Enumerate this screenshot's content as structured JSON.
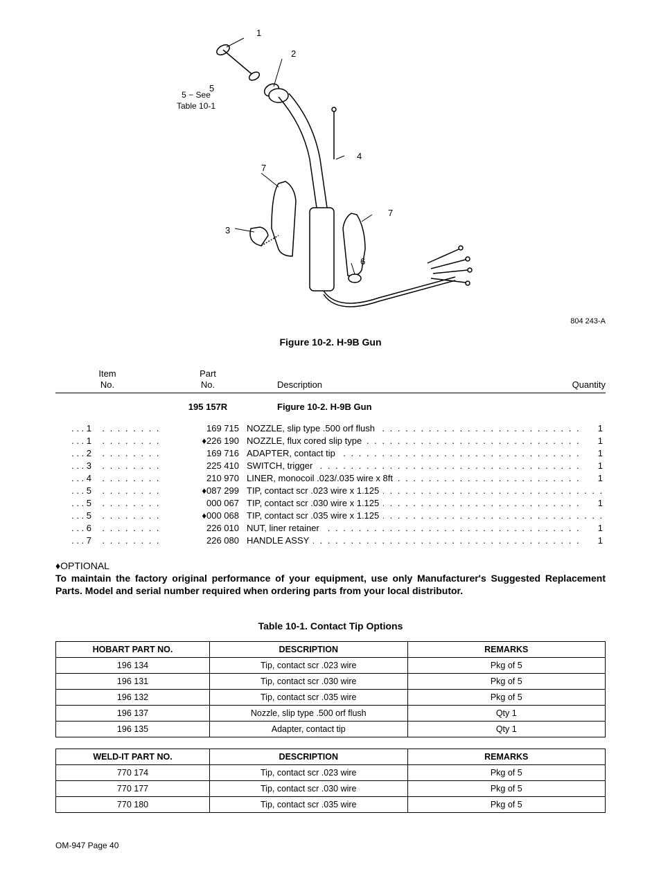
{
  "diagram": {
    "note_line1": "5 − See",
    "note_line2": "Table 10-1",
    "ref": "804 243-A",
    "caption": "Figure 10-2. H-9B Gun",
    "callouts": [
      "1",
      "2",
      "3",
      "4",
      "5",
      "6",
      "7",
      "7"
    ]
  },
  "parts_header": {
    "item_l1": "Item",
    "item_l2": "No.",
    "part_l1": "Part",
    "part_l2": "No.",
    "desc": "Description",
    "qty": "Quantity"
  },
  "title_row": {
    "part": "195 157R",
    "desc": "Figure 10-2. H-9B Gun"
  },
  "parts": [
    {
      "item": "1",
      "opt": false,
      "part": "169 715",
      "desc": "NOZZLE, slip type .500 orf flush",
      "qty": "1"
    },
    {
      "item": "1",
      "opt": true,
      "part": "226 190",
      "desc": "NOZZLE, flux cored slip type",
      "qty": "1"
    },
    {
      "item": "2",
      "opt": false,
      "part": "169 716",
      "desc": "ADAPTER, contact tip",
      "qty": "1"
    },
    {
      "item": "3",
      "opt": false,
      "part": "225 410",
      "desc": "SWITCH, trigger",
      "qty": "1"
    },
    {
      "item": "4",
      "opt": false,
      "part": "210 970",
      "desc": "LINER, monocoil .023/.035 wire x 8ft",
      "qty": "1"
    },
    {
      "item": "5",
      "opt": true,
      "part": "087 299",
      "desc": "TIP, contact scr .023 wire x 1.125",
      "qty": ""
    },
    {
      "item": "5",
      "opt": false,
      "part": "000 067",
      "desc": "TIP, contact scr .030 wire x 1.125",
      "qty": "1"
    },
    {
      "item": "5",
      "opt": true,
      "part": "000 068",
      "desc": "TIP, contact scr .035 wire x 1.125",
      "qty": ""
    },
    {
      "item": "6",
      "opt": false,
      "part": "226 010",
      "desc": "NUT, liner retainer",
      "qty": "1"
    },
    {
      "item": "7",
      "opt": false,
      "part": "226 080",
      "desc": "HANDLE ASSY",
      "qty": "1"
    }
  ],
  "optional_label": "OPTIONAL",
  "bold_note": "To maintain the factory original performance of your equipment, use only Manufacturer's Suggested Replacement Parts. Model and serial number required  when ordering parts from your local distributor.",
  "options_caption": "Table 10-1. Contact Tip Options",
  "hobart_header": [
    "HOBART PART NO.",
    "DESCRIPTION",
    "REMARKS"
  ],
  "hobart_rows": [
    [
      "196 134",
      "Tip, contact scr .023 wire",
      "Pkg of 5"
    ],
    [
      "196 131",
      "Tip, contact scr .030 wire",
      "Pkg of 5"
    ],
    [
      "196 132",
      "Tip, contact scr .035 wire",
      "Pkg of 5"
    ],
    [
      "196 137",
      "Nozzle, slip type .500 orf flush",
      "Qty 1"
    ],
    [
      "196 135",
      "Adapter, contact tip",
      "Qty 1"
    ]
  ],
  "weldit_header": [
    "WELD-IT PART NO.",
    "DESCRIPTION",
    "REMARKS"
  ],
  "weldit_rows": [
    [
      "770 174",
      "Tip, contact scr .023 wire",
      "Pkg of 5"
    ],
    [
      "770 177",
      "Tip, contact scr .030 wire",
      "Pkg of 5"
    ],
    [
      "770 180",
      "Tip, contact scr .035 wire",
      "Pkg of 5"
    ]
  ],
  "footer": "OM-947 Page 40"
}
